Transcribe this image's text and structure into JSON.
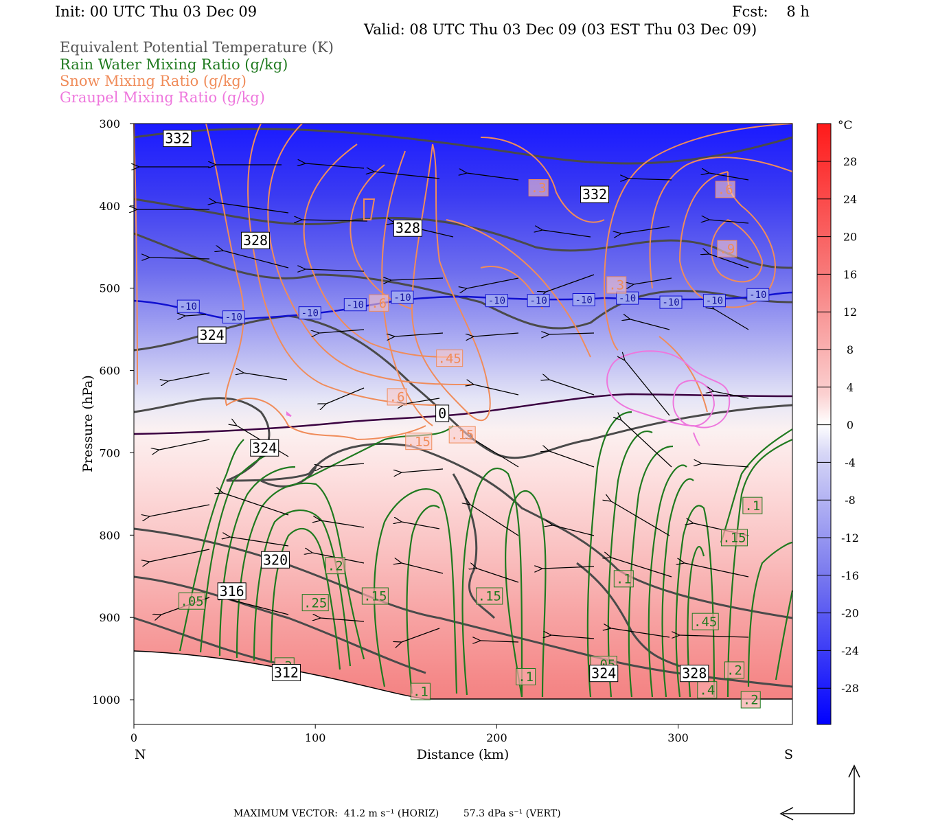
{
  "header": {
    "init": "Init: 00 UTC Thu 03 Dec 09",
    "fcst": "Fcst:    8 h",
    "valid": "Valid: 08 UTC Thu 03 Dec 09 (03 EST Thu 03 Dec 09)",
    "fields": [
      {
        "label": "Equivalent Potential Temperature (K)",
        "color": "#555555"
      },
      {
        "label": "Rain Water Mixing Ratio (g/kg)",
        "color": "#1f7a1f"
      },
      {
        "label": "Snow Mixing Ratio (g/kg)",
        "color": "#f08c5a"
      },
      {
        "label": "Graupel Mixing Ratio (g/kg)",
        "color": "#ee77dd"
      }
    ]
  },
  "footer": {
    "text": "MAXIMUM VECTOR:  41.2 m s⁻¹ (HORIZ)        57.3 dPa s⁻¹ (VERT)"
  },
  "chart_data": {
    "type": "heatmap",
    "title": "",
    "xlabel": "Distance (km)",
    "ylabel": "Pressure (hPa)",
    "xlim": [
      0,
      363
    ],
    "ylim": [
      1030,
      300
    ],
    "x_ticks": [
      0,
      100,
      200,
      300
    ],
    "y_ticks": [
      300,
      400,
      500,
      600,
      700,
      800,
      900,
      1000
    ],
    "x_end_labels": {
      "left": "N",
      "right": "S"
    },
    "colorbar": {
      "unit": "°C",
      "ticks": [
        28,
        24,
        20,
        16,
        12,
        8,
        4,
        0,
        -4,
        -8,
        -12,
        -16,
        -20,
        -24,
        -28
      ]
    },
    "isotherm_labels": [
      {
        "text": "-10",
        "x": 30,
        "p": 522
      },
      {
        "text": "-10",
        "x": 55,
        "p": 535
      },
      {
        "text": "-10",
        "x": 97,
        "p": 530
      },
      {
        "text": "-10",
        "x": 122,
        "p": 520
      },
      {
        "text": "-10",
        "x": 148,
        "p": 511
      },
      {
        "text": "-10",
        "x": 200,
        "p": 515
      },
      {
        "text": "-10",
        "x": 223,
        "p": 515
      },
      {
        "text": "-10",
        "x": 248,
        "p": 514
      },
      {
        "text": "-10",
        "x": 272,
        "p": 512
      },
      {
        "text": "-10",
        "x": 296,
        "p": 517
      },
      {
        "text": "-10",
        "x": 320,
        "p": 515
      },
      {
        "text": "-10",
        "x": 344,
        "p": 508
      }
    ],
    "theta_e_labels": [
      {
        "text": "332",
        "x": 24,
        "p": 318
      },
      {
        "text": "332",
        "x": 254,
        "p": 386
      },
      {
        "text": "328",
        "x": 67,
        "p": 442
      },
      {
        "text": "328",
        "x": 151,
        "p": 427
      },
      {
        "text": "324",
        "x": 43,
        "p": 557
      },
      {
        "text": "324",
        "x": 72,
        "p": 694
      },
      {
        "text": "320",
        "x": 78,
        "p": 830
      },
      {
        "text": "316",
        "x": 54,
        "p": 868
      },
      {
        "text": "312",
        "x": 84,
        "p": 967
      },
      {
        "text": "324",
        "x": 259,
        "p": 968
      },
      {
        "text": "328",
        "x": 309,
        "p": 968
      },
      {
        "text": "0",
        "x": 170,
        "p": 652
      }
    ],
    "rain_labels": [
      {
        "text": ".05",
        "x": 32,
        "p": 880
      },
      {
        "text": ".25",
        "x": 100,
        "p": 882
      },
      {
        "text": ".2",
        "x": 111,
        "p": 837
      },
      {
        "text": ".15",
        "x": 133,
        "p": 874
      },
      {
        "text": ".15",
        "x": 196,
        "p": 874
      },
      {
        "text": ".1",
        "x": 158,
        "p": 990
      },
      {
        "text": ".1",
        "x": 216,
        "p": 972
      },
      {
        "text": ".1",
        "x": 270,
        "p": 853
      },
      {
        "text": ".1",
        "x": 341,
        "p": 764
      },
      {
        "text": ".15",
        "x": 331,
        "p": 803
      },
      {
        "text": ".45",
        "x": 315,
        "p": 905
      },
      {
        "text": ".2",
        "x": 331,
        "p": 964
      },
      {
        "text": ".4",
        "x": 316,
        "p": 988
      },
      {
        "text": ".2",
        "x": 340,
        "p": 1000
      },
      {
        "text": ".05",
        "x": 259,
        "p": 957
      },
      {
        "text": ".3",
        "x": 83,
        "p": 959
      }
    ],
    "snow_labels": [
      {
        "text": ".3",
        "x": 223,
        "p": 378
      },
      {
        "text": ".6",
        "x": 326,
        "p": 380
      },
      {
        "text": ".9",
        "x": 327,
        "p": 452
      },
      {
        "text": ".3",
        "x": 266,
        "p": 496
      },
      {
        "text": ".6",
        "x": 135,
        "p": 518
      },
      {
        "text": ".45",
        "x": 174,
        "p": 585
      },
      {
        "text": ".6",
        "x": 145,
        "p": 632
      },
      {
        "text": ".15",
        "x": 181,
        "p": 678
      },
      {
        "text": ".15",
        "x": 157,
        "p": 686
      }
    ]
  }
}
